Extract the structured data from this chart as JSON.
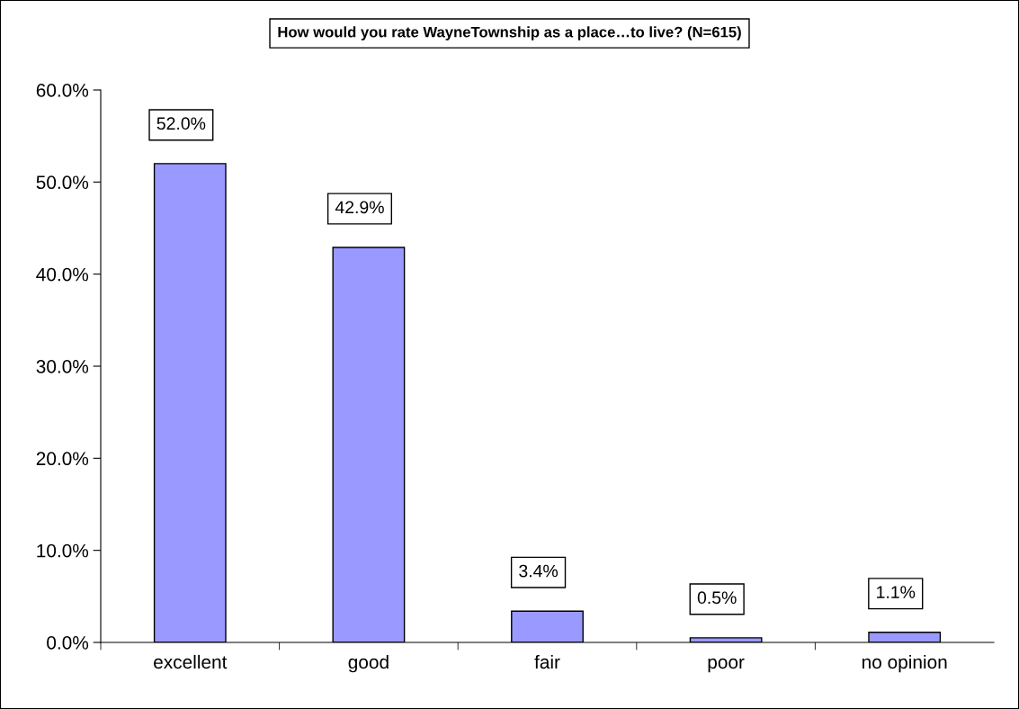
{
  "chart_data": {
    "type": "bar",
    "title": "How would you rate WayneTownship as a place…to live? (N=615)",
    "categories": [
      "excellent",
      "good",
      "fair",
      "poor",
      "no opinion"
    ],
    "values": [
      52.0,
      42.9,
      3.4,
      0.5,
      1.1
    ],
    "value_labels": [
      "52.0%",
      "42.9%",
      "3.4%",
      "0.5%",
      "1.1%"
    ],
    "color": "#9999ff",
    "ylim": [
      0,
      60
    ],
    "yticks": [
      {
        "value": 0,
        "label": "0.0%"
      },
      {
        "value": 10,
        "label": "10.0%"
      },
      {
        "value": 20,
        "label": "20.0%"
      },
      {
        "value": 30,
        "label": "30.0%"
      },
      {
        "value": 40,
        "label": "40.0%"
      },
      {
        "value": 50,
        "label": "50.0%"
      },
      {
        "value": 60,
        "label": "60.0%"
      }
    ],
    "grid": false,
    "legend": false
  }
}
